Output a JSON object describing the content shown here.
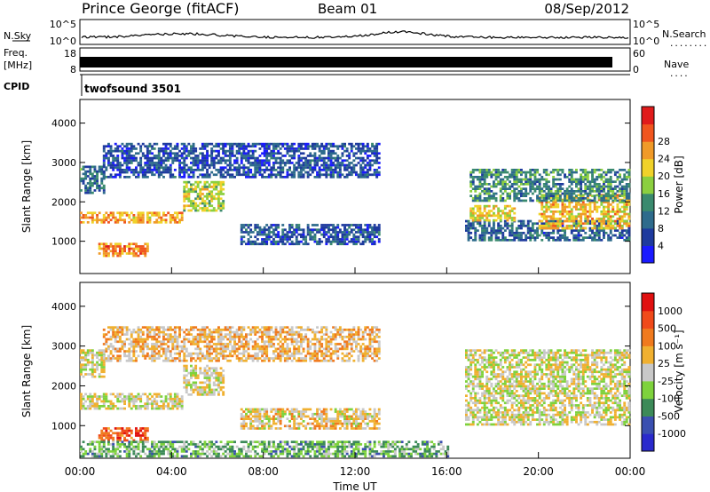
{
  "header": {
    "station": "Prince George (fitACF)",
    "beam": "Beam 01",
    "date": "08/Sep/2012"
  },
  "side_labels": {
    "nsky": "N.Sky",
    "freq_line1": "Freq.",
    "freq_line2": "[MHz]",
    "cpid": "CPID",
    "nsearch": "N.Search",
    "nsearch_dots": "........",
    "nave": "Nave",
    "nave_dots": "...."
  },
  "noise_panel": {
    "yticks_left": [
      "10^5",
      "10^0"
    ],
    "yticks_right": [
      "10^5",
      "10^0"
    ]
  },
  "freq_panel": {
    "yticks_left": [
      "18",
      "8"
    ],
    "yticks_right": [
      "60",
      "0"
    ]
  },
  "cpid_panel": {
    "program": "twofsound 3501"
  },
  "colors": {
    "power": [
      "#1a1aff",
      "#1e3a9e",
      "#2e6b8c",
      "#3a8a6e",
      "#8bcf3f",
      "#f0d22a",
      "#f09a28",
      "#f0551e",
      "#e01b1b"
    ],
    "velocity": [
      "#2a2acc",
      "#3a4fb0",
      "#3c8a58",
      "#7ed23c",
      "#c8c8c8",
      "#f0b030",
      "#f07a1e",
      "#f04a1a",
      "#e01010"
    ]
  },
  "chart_data": [
    {
      "type": "heatmap",
      "name": "power",
      "xlabel": "",
      "ylabel": "Slant Range [km]",
      "yticks": [
        "1000",
        "2000",
        "3000",
        "4000"
      ],
      "xticks": [
        "00:00",
        "04:00",
        "08:00",
        "12:00",
        "16:00",
        "20:00",
        "00:00"
      ],
      "xlim_hours": [
        0,
        24
      ],
      "ylim_km": [
        180,
        4600
      ],
      "colorbar": {
        "label": "Power [dB]",
        "ticks": [
          "4",
          "8",
          "12",
          "16",
          "20",
          "24",
          "28"
        ]
      },
      "bands": [
        {
          "t0": 0.0,
          "t1": 1.0,
          "r0": 2200,
          "r1": 2900,
          "level": 0.3
        },
        {
          "t0": 0.0,
          "t1": 4.5,
          "r0": 1450,
          "r1": 1750,
          "level": 0.7
        },
        {
          "t0": 4.5,
          "t1": 6.2,
          "r0": 1750,
          "r1": 2500,
          "level": 0.55
        },
        {
          "t0": 0.8,
          "t1": 3.0,
          "r0": 600,
          "r1": 950,
          "level": 0.75
        },
        {
          "t0": 1.0,
          "t1": 13.0,
          "r0": 2600,
          "r1": 3500,
          "level": 0.2
        },
        {
          "t0": 7.0,
          "t1": 13.0,
          "r0": 900,
          "r1": 1400,
          "level": 0.22
        },
        {
          "t0": 16.8,
          "t1": 24.0,
          "r0": 1000,
          "r1": 1500,
          "level": 0.25
        },
        {
          "t0": 17.0,
          "t1": 19.0,
          "r0": 1500,
          "r1": 1900,
          "level": 0.6
        },
        {
          "t0": 20.0,
          "t1": 24.0,
          "r0": 1300,
          "r1": 2200,
          "level": 0.65
        },
        {
          "t0": 17.0,
          "t1": 24.0,
          "r0": 2000,
          "r1": 2800,
          "level": 0.35
        }
      ]
    },
    {
      "type": "heatmap",
      "name": "velocity",
      "xlabel": "Time UT",
      "ylabel": "Slant Range [km]",
      "yticks": [
        "1000",
        "2000",
        "3000",
        "4000"
      ],
      "xticks": [
        "00:00",
        "04:00",
        "08:00",
        "12:00",
        "16:00",
        "20:00",
        "00:00"
      ],
      "xlim_hours": [
        0,
        24
      ],
      "ylim_km": [
        180,
        4600
      ],
      "colorbar": {
        "label": "Velocity [m s⁻¹]",
        "ticks": [
          "1000",
          "500",
          "100",
          "25",
          "-25",
          "-100",
          "-500",
          "-1000"
        ]
      },
      "bands": [
        {
          "t0": 0.0,
          "t1": 1.0,
          "r0": 2200,
          "r1": 2900,
          "level": 0.5
        },
        {
          "t0": 0.0,
          "t1": 4.5,
          "r0": 1400,
          "r1": 1800,
          "level": 0.5
        },
        {
          "t0": 4.5,
          "t1": 6.2,
          "r0": 1750,
          "r1": 2500,
          "level": 0.52
        },
        {
          "t0": 0.8,
          "t1": 3.0,
          "r0": 600,
          "r1": 950,
          "level": 0.8
        },
        {
          "t0": 1.0,
          "t1": 13.0,
          "r0": 2600,
          "r1": 3500,
          "level": 0.6
        },
        {
          "t0": 7.0,
          "t1": 13.0,
          "r0": 900,
          "r1": 1400,
          "level": 0.55
        },
        {
          "t0": 0.0,
          "t1": 16.0,
          "r0": 200,
          "r1": 600,
          "level": 0.35
        },
        {
          "t0": 16.8,
          "t1": 24.0,
          "r0": 1000,
          "r1": 2900,
          "level": 0.5
        }
      ]
    }
  ]
}
